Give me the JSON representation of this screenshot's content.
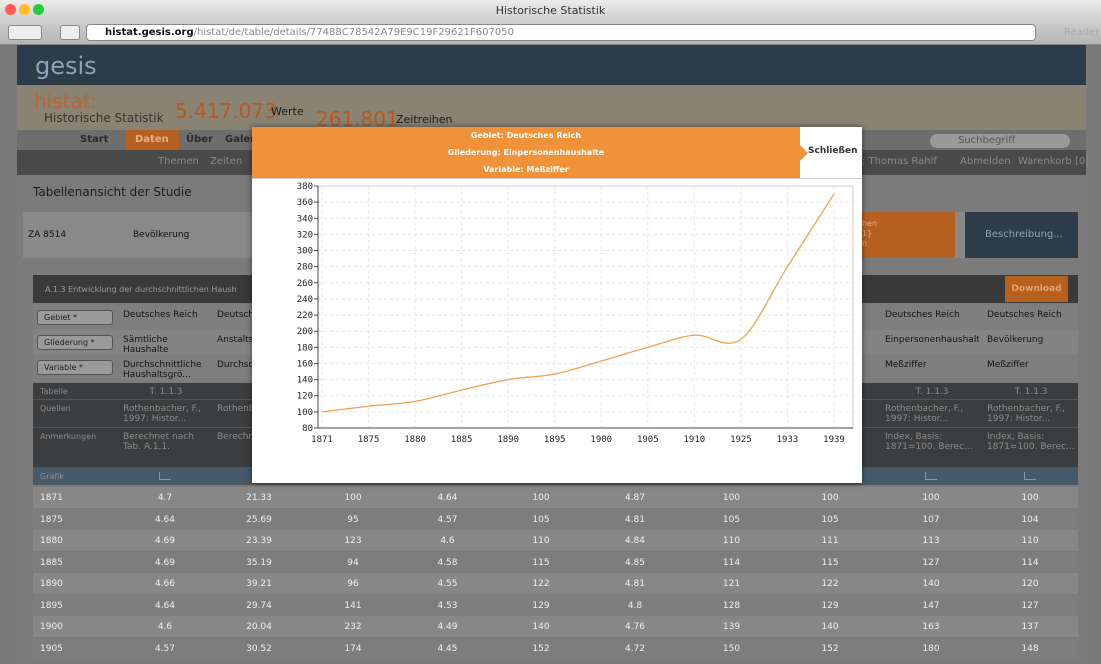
{
  "browser": {
    "title": "Historische Statistik",
    "url_host": "histat.gesis.org",
    "url_path": "/histat/de/table/details/77488C78542A79E9C19F29621F607050",
    "reader": "Reader"
  },
  "header": {
    "logo": "gesis",
    "brand": "histat:",
    "brand_sub": "Historische Statistik",
    "values_count": "5.417.073",
    "values_label": "Werte",
    "series_count": "261.801",
    "series_label": "Zeitreihen"
  },
  "nav": {
    "items": [
      "Start",
      "Daten",
      "Über",
      "Galerie"
    ],
    "search": "Suchbegriff",
    "subnav": [
      "Themen",
      "Zeiten"
    ],
    "user": ": Thomas Rahlf",
    "logout": "Abmelden",
    "cart": "Warenkorb [0]"
  },
  "study": {
    "heading": "Tabellenansicht der Studie",
    "id": "ZA 8514",
    "topic": "Bevölkerung",
    "tab_fragments": [
      "hen",
      "1}",
      "n"
    ],
    "describe": "Beschreibung..."
  },
  "table": {
    "title": "A.1.3 Entwicklung der durchschnittlichen Haush",
    "download": "Download",
    "filters": [
      {
        "label": "Gebiet *",
        "cells": [
          "Deutsches Reich",
          "Deutsch",
          "Deutsches Reich",
          "Deutsches Reich"
        ]
      },
      {
        "label": "Gliederung *",
        "cells": [
          "Sämtliche Haushalte",
          "Anstalts",
          "Einpersonenhaushalte",
          "Bevölkerung"
        ]
      },
      {
        "label": "Variable *",
        "cells": [
          "Durchschnittliche Haushaltsgrö...",
          "Durchsc Hausha",
          "Meßziffer",
          "Meßziffer"
        ]
      }
    ],
    "meta": [
      {
        "label": "Tabelle",
        "cells": [
          "T. 1.1.3",
          "T.",
          "T. 1.1.3",
          "T. 1.1.3"
        ]
      },
      {
        "label": "Quellen",
        "cells": [
          "Rothenbacher, F., 1997: Histor...",
          "Rothenb 1997: H",
          "Rothenbacher, F., 1997: Histor...",
          "Rothenbacher, F., 1997: Histor..."
        ]
      },
      {
        "label": "Anmerkungen",
        "cells": [
          "Berechnet nach Tab. A.1.1.",
          "Berechn Tab. A.",
          "Index, Basis: 1871=100. Berec...",
          "Index, Basis: 1871=100. Berec..."
        ]
      },
      {
        "label": "Grafik"
      }
    ],
    "rows": [
      [
        1871,
        4.7,
        21.33,
        100,
        4.64,
        100,
        4.87,
        100,
        100,
        100,
        100
      ],
      [
        1875,
        4.64,
        25.69,
        95,
        4.57,
        105,
        4.81,
        105,
        105,
        107,
        104
      ],
      [
        1880,
        4.69,
        23.39,
        123,
        4.6,
        110,
        4.84,
        110,
        111,
        113,
        110
      ],
      [
        1885,
        4.69,
        35.19,
        94,
        4.58,
        115,
        4.85,
        114,
        115,
        127,
        114
      ],
      [
        1890,
        4.66,
        39.21,
        96,
        4.55,
        122,
        4.81,
        121,
        122,
        140,
        120
      ],
      [
        1895,
        4.64,
        29.74,
        141,
        4.53,
        129,
        4.8,
        128,
        129,
        147,
        127
      ],
      [
        1900,
        4.6,
        20.04,
        232,
        4.49,
        140,
        4.76,
        139,
        140,
        163,
        137
      ],
      [
        1905,
        4.57,
        30.52,
        174,
        4.45,
        152,
        4.72,
        150,
        152,
        180,
        148
      ]
    ]
  },
  "modal": {
    "lines": [
      "Gebiet: Deutsches Reich",
      "Gliederung: Einpersonenhaushalte",
      "Variable: Meßziffer"
    ],
    "close": "Schließen"
  },
  "chart_data": {
    "type": "line",
    "categories": [
      "1871",
      "1875",
      "1880",
      "1885",
      "1890",
      "1895",
      "1900",
      "1905",
      "1910",
      "1925",
      "1933",
      "1939"
    ],
    "values": [
      100,
      107,
      113,
      127,
      140,
      147,
      163,
      180,
      195,
      190,
      280,
      370
    ],
    "color": "#f0a050",
    "ylim": [
      80,
      380
    ],
    "yticks": [
      80,
      100,
      120,
      140,
      160,
      180,
      200,
      220,
      240,
      260,
      280,
      300,
      320,
      340,
      360,
      380
    ],
    "grid": true
  }
}
